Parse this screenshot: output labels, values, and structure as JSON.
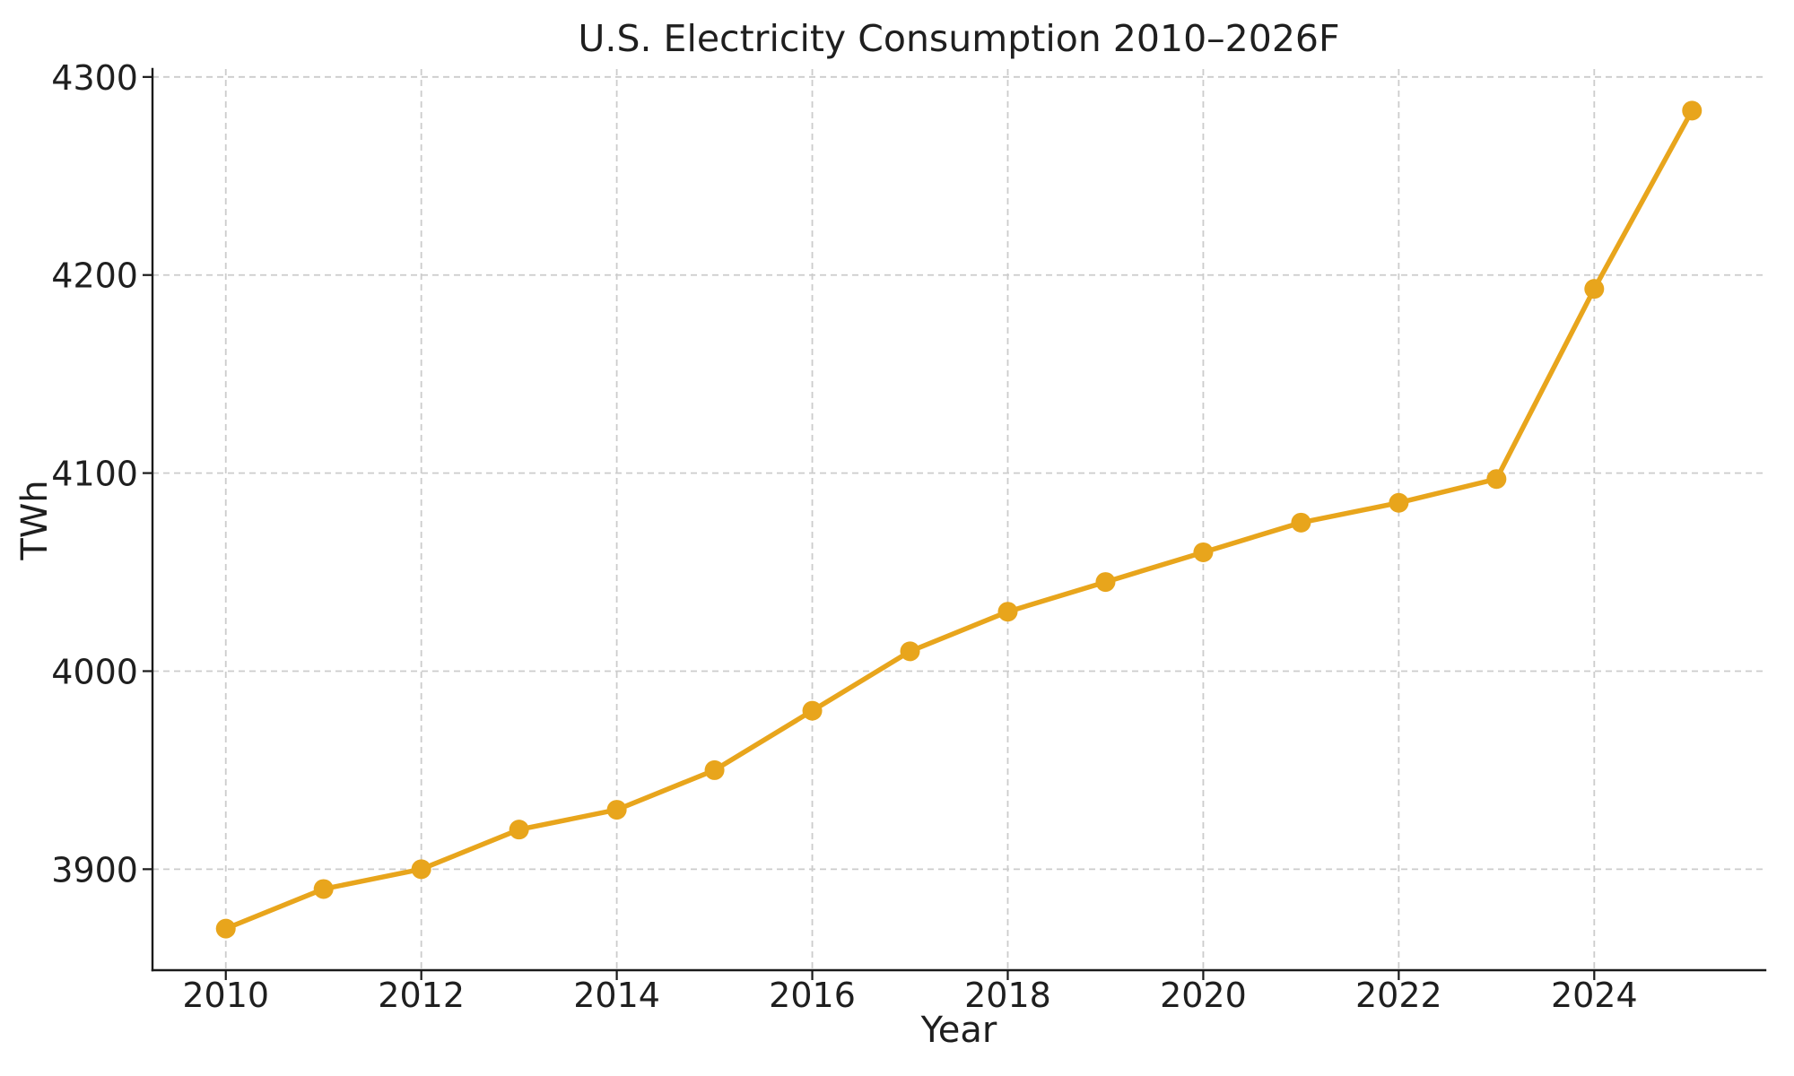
{
  "chart_data": {
    "type": "line",
    "title": "U.S. Electricity Consumption 2010–2026F",
    "xlabel": "Year",
    "ylabel": "TWh",
    "x": [
      2010,
      2011,
      2012,
      2013,
      2014,
      2015,
      2016,
      2017,
      2018,
      2019,
      2020,
      2021,
      2022,
      2023,
      2024,
      2025
    ],
    "values": [
      3870,
      3890,
      3900,
      3920,
      3930,
      3950,
      3980,
      4010,
      4030,
      4045,
      4060,
      4075,
      4085,
      4097,
      4193,
      4283
    ],
    "xticks": [
      2010,
      2012,
      2014,
      2016,
      2018,
      2020,
      2022,
      2024
    ],
    "yticks": [
      3900,
      4000,
      4100,
      4200,
      4300
    ],
    "xlim": [
      2009.25,
      2025.75
    ],
    "ylim": [
      3849,
      4304
    ],
    "grid": "dashed",
    "legend": "none",
    "marker": "circle",
    "line_color": "#E8A51C",
    "grid_color": "#CCCCCC",
    "spine_color": "#1A1A1A",
    "text_color": "#1F1F1F",
    "background": "#FFFFFF"
  }
}
